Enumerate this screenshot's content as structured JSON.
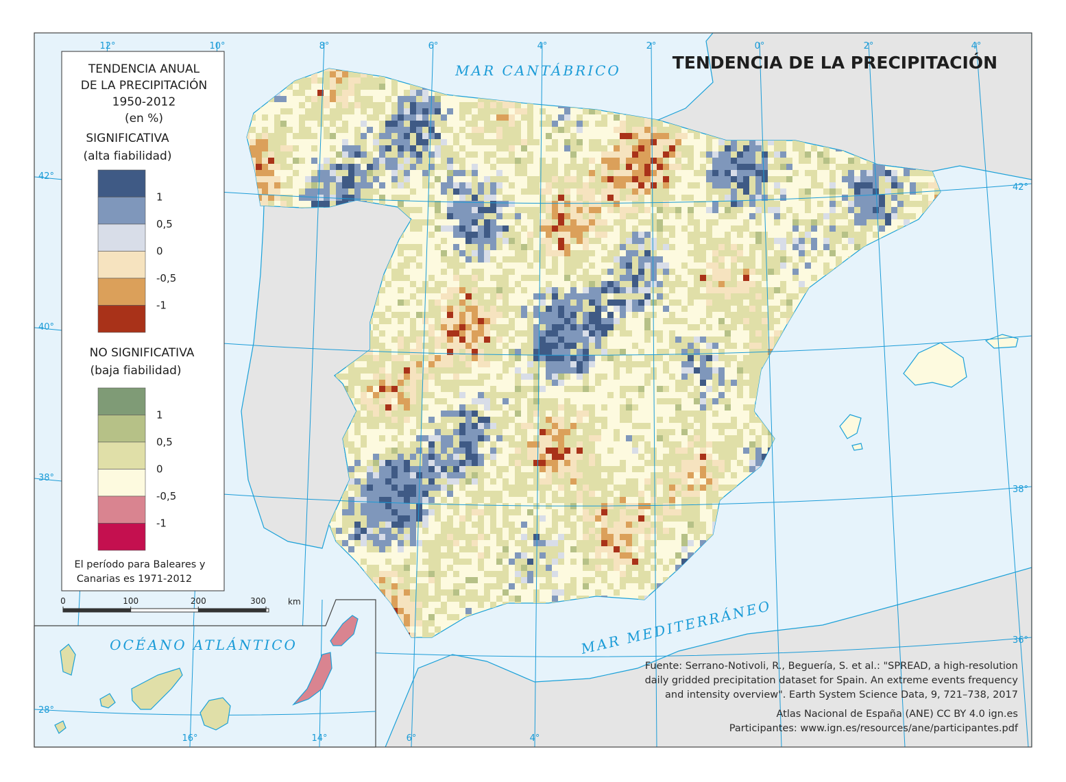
{
  "title": "TENDENCIA DE LA PRECIPITACIÓN",
  "legend": {
    "heading": [
      "TENDENCIA ANUAL",
      "DE LA PRECIPITACIÓN",
      "1950-2012",
      "(en %)"
    ],
    "significant": {
      "title": "SIGNIFICATIVA",
      "subtitle": "(alta fiabilidad)",
      "colors": [
        "#3f5a85",
        "#7f97bb",
        "#d8dde8",
        "#f6e3bf",
        "#dba05a",
        "#a93219"
      ],
      "labels": [
        "1",
        "0,5",
        "0",
        "-0,5",
        "-1"
      ]
    },
    "not_significant": {
      "title": "NO SIGNIFICATIVA",
      "subtitle": "(baja fiabilidad)",
      "colors": [
        "#7f9b76",
        "#b6c187",
        "#e0dfa8",
        "#fdfadf",
        "#d98490",
        "#c4104f"
      ],
      "labels": [
        "1",
        "0,5",
        "0",
        "-0,5",
        "-1"
      ]
    },
    "note": [
      "El período para Baleares y",
      "Canarias es 1971-2012"
    ]
  },
  "scale_bar": {
    "ticks": [
      0,
      100,
      200,
      300
    ],
    "unit": "km"
  },
  "seas": {
    "north": "MAR CANTÁBRICO",
    "east": "MAR MEDITERRÁNEO",
    "inset": "OCÉANO ATLÁNTICO"
  },
  "graticule": {
    "top": [
      "12°",
      "10°",
      "8°",
      "6°",
      "4°",
      "2°",
      "0°",
      "2°",
      "4°"
    ],
    "left": [
      "42°",
      "40°",
      "38°"
    ],
    "right": [
      "42°",
      "38°",
      "36°"
    ],
    "bottom": [
      "6°",
      "4°"
    ],
    "inset": [
      "28°",
      "16°",
      "14°"
    ]
  },
  "source": [
    "Fuente: Serrano-Notivoli, R., Beguería, S. et al.: \"SPREAD, a high-resolution",
    "daily gridded precipitation dataset for Spain. An extreme events frequency",
    "and intensity overview\". Earth System Science Data, 9, 721–738, 2017",
    "Atlas Nacional de España (ANE) CC BY 4.0 ign.es",
    "Participantes: www.ign.es/resources/ane/participantes.pdf"
  ]
}
